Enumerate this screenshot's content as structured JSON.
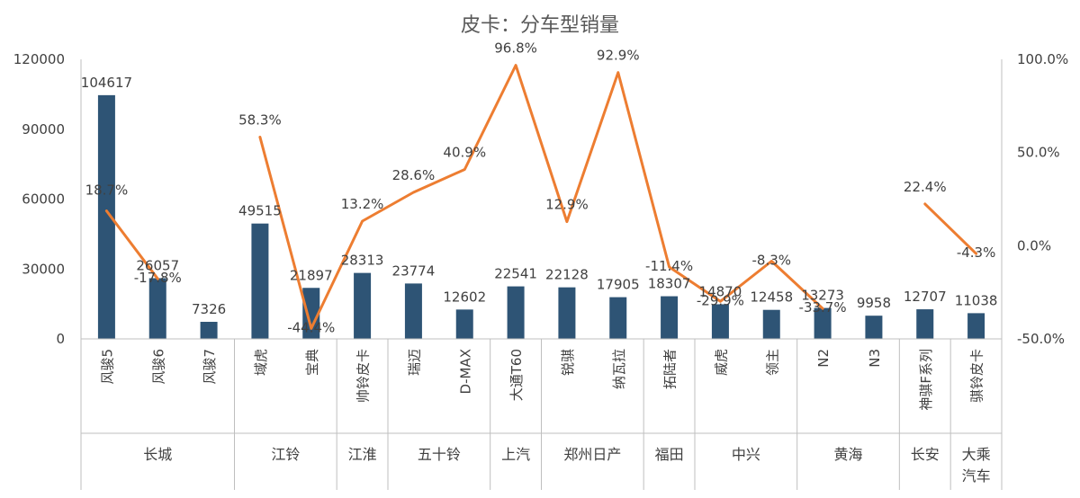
{
  "chart_data": {
    "type": "bar",
    "title": "皮卡：分车型销量",
    "categories": [
      "风骏5",
      "风骏6",
      "风骏7",
      "域虎",
      "宝典",
      "帅铃皮卡",
      "瑞迈",
      "D-MAX",
      "大通T60",
      "锐骐",
      "纳瓦拉",
      "拓陆者",
      "威虎",
      "领主",
      "N2",
      "N3",
      "神骐F系列",
      "骐铃皮卡"
    ],
    "groups": [
      {
        "name": "长城",
        "count": 3
      },
      {
        "name": "江铃",
        "count": 2
      },
      {
        "name": "江淮",
        "count": 1
      },
      {
        "name": "五十铃",
        "count": 2
      },
      {
        "name": "上汽",
        "count": 1
      },
      {
        "name": "郑州日产",
        "count": 2
      },
      {
        "name": "福田",
        "count": 1
      },
      {
        "name": "中兴",
        "count": 2
      },
      {
        "name": "黄海",
        "count": 2
      },
      {
        "name": "长安",
        "count": 1
      },
      {
        "name": "大乘\n汽车",
        "count": 1
      }
    ],
    "series": [
      {
        "type": "bar",
        "axis": "left",
        "values": [
          104617,
          26057,
          7326,
          49515,
          21897,
          28313,
          23774,
          12602,
          22541,
          22128,
          17905,
          18307,
          14870,
          12458,
          13273,
          9958,
          12707,
          11038
        ],
        "labels": [
          "104617",
          "26057",
          "7326",
          "49515",
          "21897",
          "28313",
          "23774",
          "12602",
          "22541",
          "22128",
          "17905",
          "18307",
          "14870",
          "12458",
          "13273",
          "9958",
          "12707",
          "11038"
        ],
        "color": "#2e5475"
      },
      {
        "type": "line",
        "axis": "right",
        "values": [
          18.7,
          -17.8,
          null,
          58.3,
          -44.4,
          13.2,
          28.6,
          40.9,
          96.8,
          12.9,
          92.9,
          -11.4,
          -29.9,
          -8.3,
          -33.7,
          null,
          22.4,
          -4.3
        ],
        "labels": [
          "18.7%",
          "-17.8%",
          "",
          "58.3%",
          "-44.4%",
          "13.2%",
          "28.6%",
          "40.9%",
          "96.8%",
          "12.9%",
          "92.9%",
          "-11.4%",
          "-29.9%",
          "-8.3%",
          "-33.7%",
          "",
          "22.4%",
          "-4.3%"
        ],
        "color": "#ed7d31"
      }
    ],
    "y_left": {
      "min": 0,
      "max": 120000,
      "ticks": [
        "0",
        "30000",
        "60000",
        "90000",
        "120000"
      ]
    },
    "y_right": {
      "min": -50,
      "max": 100,
      "ticks": [
        "-50.0%",
        "0.0%",
        "50.0%",
        "100.0%"
      ]
    },
    "grid": false,
    "legend": "none"
  }
}
